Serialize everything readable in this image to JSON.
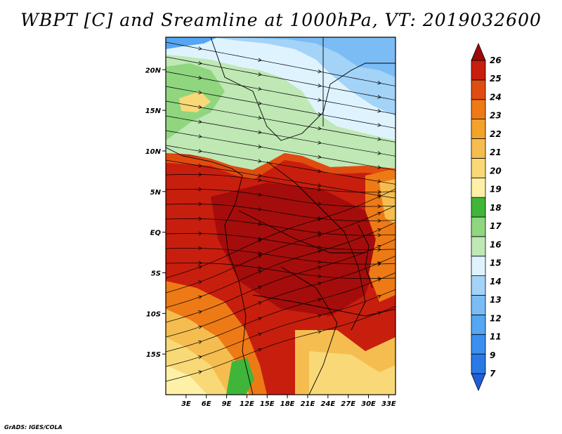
{
  "title": "WBPT [C] and Sreamline at 1000hPa, VT: 2019032600",
  "credit": "GrADS: IGES/COLA",
  "map": {
    "lon_range": [
      0,
      34
    ],
    "lat_range": [
      -20,
      24
    ],
    "lon_ticks": [
      "3E",
      "6E",
      "9E",
      "12E",
      "15E",
      "18E",
      "21E",
      "24E",
      "27E",
      "30E",
      "33E"
    ],
    "lat_ticks": [
      "20N",
      "15N",
      "10N",
      "5N",
      "EQ",
      "5S",
      "10S",
      "15S"
    ]
  },
  "colorbar": {
    "labels": [
      "7",
      "9",
      "11",
      "12",
      "13",
      "14",
      "15",
      "16",
      "17",
      "18",
      "19",
      "20",
      "21",
      "22",
      "23",
      "24",
      "25",
      "26"
    ],
    "colors": [
      "#1e5fd9",
      "#2a7ae6",
      "#3b8ff0",
      "#55a6f3",
      "#7bbcf5",
      "#a3d3f7",
      "#dff3ff",
      "#bfe8b4",
      "#8fd67f",
      "#3fb63a",
      "#fff0a8",
      "#f9d977",
      "#f5bd4f",
      "#f3a22a",
      "#ee7a16",
      "#e04c0f",
      "#c81e0e",
      "#9d0a0a"
    ]
  },
  "colors": {
    "ocean_ref": "#c81e0e",
    "contour": "#000000"
  }
}
